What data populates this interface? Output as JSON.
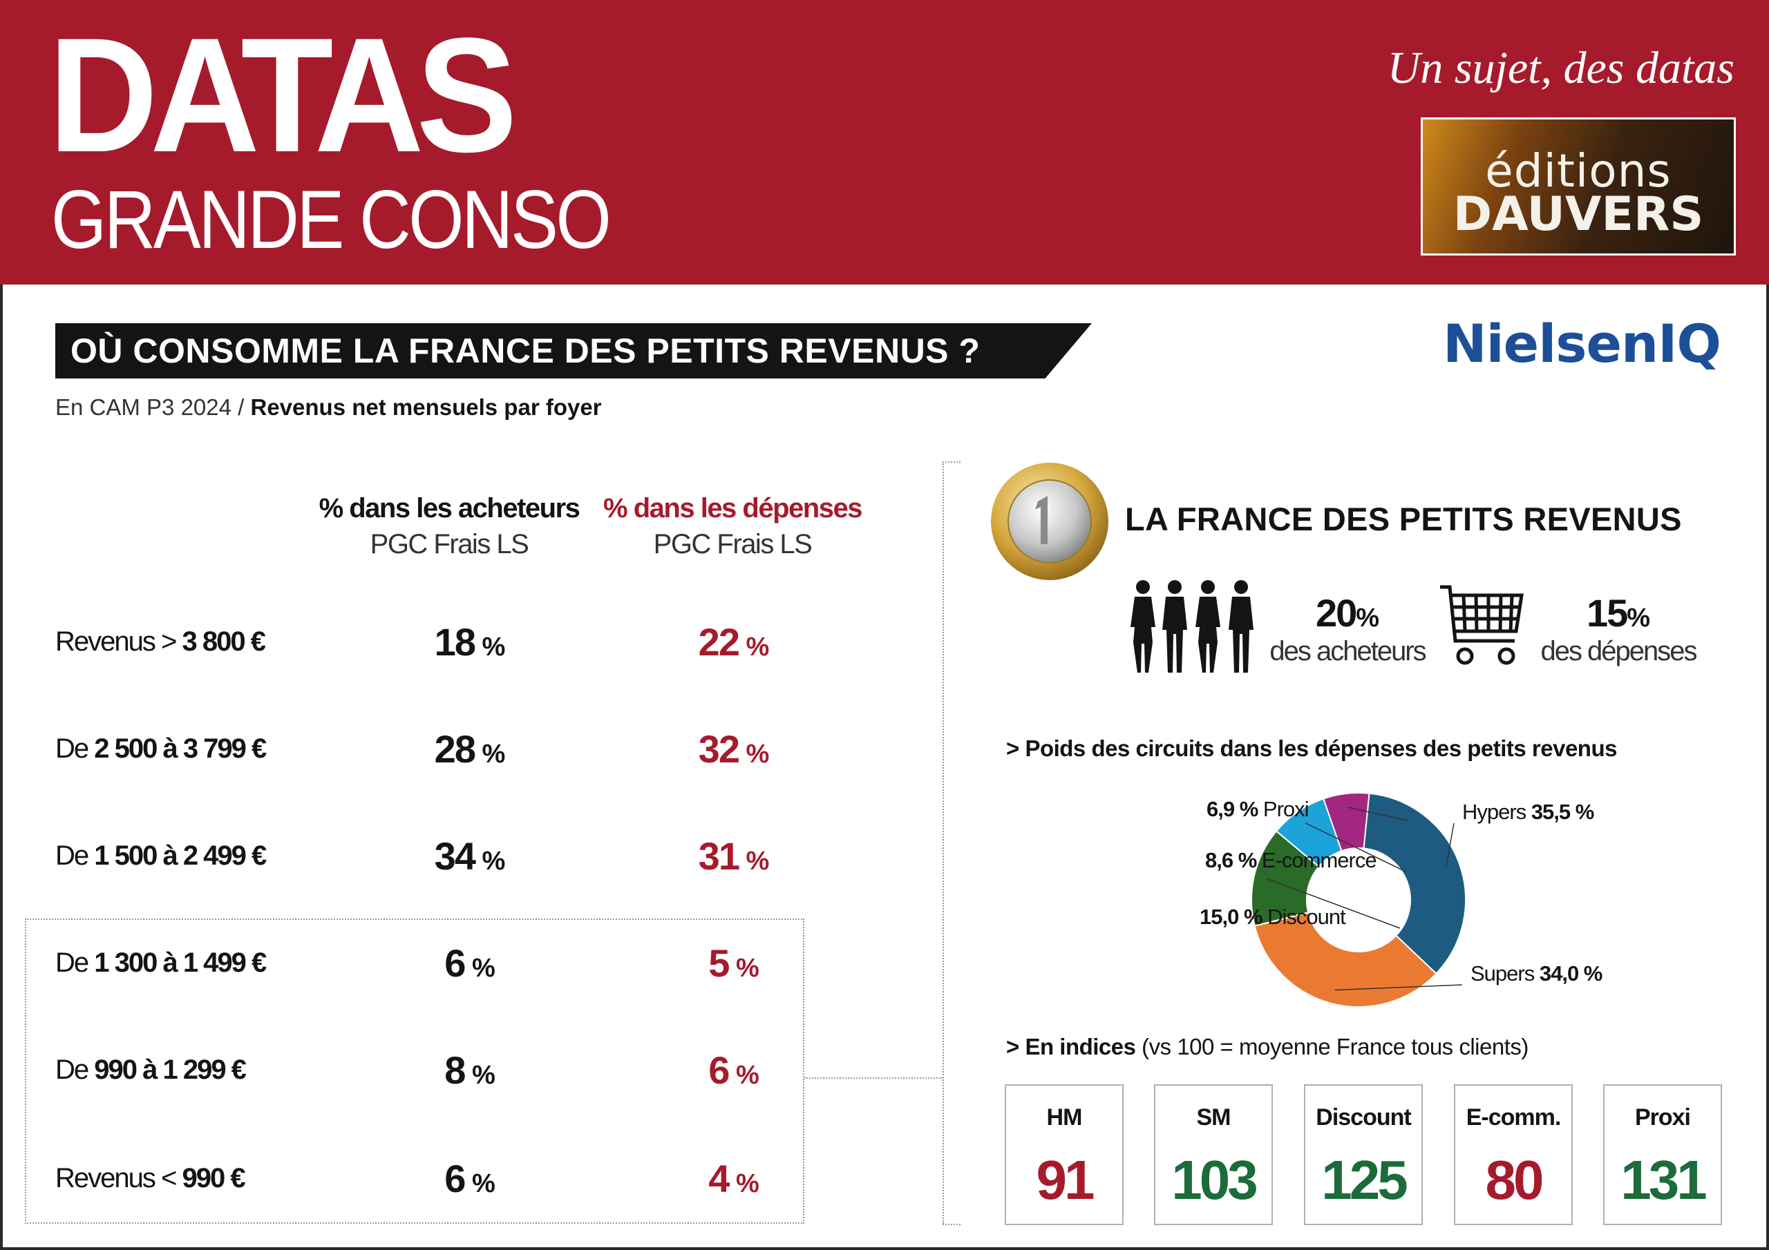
{
  "header": {
    "brand_line1": "DATAS",
    "brand_line2": "GRANDE CONSO",
    "tagline": "Un sujet, des datas",
    "publisher_line1": "éditions",
    "publisher_line2": "DAUVERS"
  },
  "title": "OÙ CONSOMME LA FRANCE DES PETITS REVENUS ?",
  "logo_text": "NielsenIQ",
  "subtitle": {
    "period": "En CAM P3 2024 /",
    "measure": "Revenus net mensuels par foyer"
  },
  "colors": {
    "brand_red": "#a51b2c",
    "hypers": "#1e5b80",
    "supers": "#ea7a32",
    "discount": "#2a6b2a",
    "ecommerce": "#1ba3da",
    "proxi": "#a32680",
    "index_above": "#1c6b3a",
    "index_below": "#a51b2c"
  },
  "table": {
    "col_acheteurs": {
      "title": "% dans les acheteurs",
      "sub": "PGC Frais LS"
    },
    "col_depenses": {
      "title": "% dans les dépenses",
      "sub": "PGC Frais LS"
    },
    "pct_sign": "%",
    "rows": [
      {
        "pre": "Revenus > ",
        "num": "3 800 €",
        "acheteurs": "18",
        "depenses": "22"
      },
      {
        "pre": "De ",
        "num": "2 500 à 3 799 €",
        "acheteurs": "28",
        "depenses": "32"
      },
      {
        "pre": "De ",
        "num": "1 500 à 2 499 €",
        "acheteurs": "34",
        "depenses": "31"
      },
      {
        "pre": "De ",
        "num": "1 300 à 1 499 €",
        "acheteurs": "6",
        "depenses": "5"
      },
      {
        "pre": "De ",
        "num": "990 à 1 299 €",
        "acheteurs": "8",
        "depenses": "6"
      },
      {
        "pre": "Revenus < ",
        "num": "990 €",
        "acheteurs": "6",
        "depenses": "4"
      }
    ]
  },
  "panel": {
    "title": "LA FRANCE DES PETITS REVENUS",
    "stat1": {
      "value": "20",
      "label": "des acheteurs"
    },
    "stat2": {
      "value": "15",
      "label": "des dépenses"
    },
    "section1": "> Poids des circuits dans les dépenses des petits revenus",
    "section2_bold": "> En indices",
    "section2_rest": " (vs 100 = moyenne France tous clients)",
    "indices": [
      {
        "label": "HM",
        "value": "91",
        "color": "index_below"
      },
      {
        "label": "SM",
        "value": "103",
        "color": "index_above"
      },
      {
        "label": "Discount",
        "value": "125",
        "color": "index_above"
      },
      {
        "label": "E-comm.",
        "value": "80",
        "color": "index_below"
      },
      {
        "label": "Proxi",
        "value": "131",
        "color": "index_above"
      }
    ]
  },
  "chart_data": {
    "type": "pie",
    "title": "Poids des circuits dans les dépenses des petits revenus",
    "unit": "%",
    "slices": [
      {
        "label": "Hypers",
        "value": 35.5,
        "display": "35,5 %",
        "color": "#1e5b80"
      },
      {
        "label": "Supers",
        "value": 34.0,
        "display": "34,0 %",
        "color": "#ea7a32"
      },
      {
        "label": "Discount",
        "value": 15.0,
        "display": "15,0 %",
        "color": "#2a6b2a"
      },
      {
        "label": "E-commerce",
        "value": 8.6,
        "display": "8,6 %",
        "color": "#1ba3da"
      },
      {
        "label": "Proxi",
        "value": 6.9,
        "display": "6,9 %",
        "color": "#a32680"
      }
    ]
  }
}
